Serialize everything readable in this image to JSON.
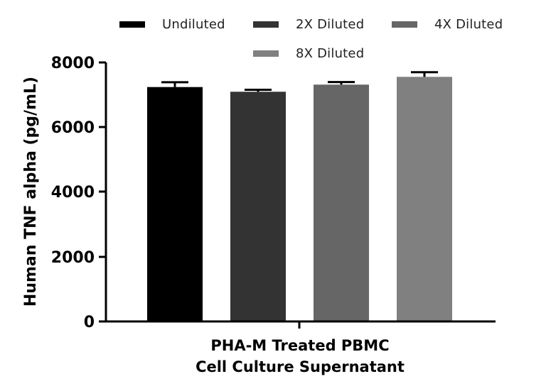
{
  "chart_data": {
    "type": "bar",
    "title": "",
    "xlabel": "PHA-M Treated PBMC\nCell Culture Supernatant",
    "xlabel_lines": [
      "PHA-M Treated PBMC",
      "Cell Culture Supernatant"
    ],
    "ylabel": "Human TNF alpha (pg/mL)",
    "ylim": [
      0,
      8000
    ],
    "yticks": [
      0,
      2000,
      4000,
      6000,
      8000
    ],
    "categories": [
      "PHA-M Treated PBMC Cell Culture Supernatant"
    ],
    "grid": false,
    "legend_position": "top",
    "series": [
      {
        "name": "Undiluted",
        "values": [
          7240
        ],
        "error": [
          150
        ],
        "color": "#000000"
      },
      {
        "name": "2X Diluted",
        "values": [
          7095
        ],
        "error": [
          60
        ],
        "color": "#333333"
      },
      {
        "name": "4X Diluted",
        "values": [
          7315
        ],
        "error": [
          80
        ],
        "color": "#666666"
      },
      {
        "name": "8X Diluted",
        "values": [
          7555
        ],
        "error": [
          145
        ],
        "color": "#808080"
      }
    ]
  },
  "legend": [
    {
      "label": "Undiluted",
      "color": "#000000"
    },
    {
      "label": "2X Diluted",
      "color": "#333333"
    },
    {
      "label": "4X Diluted",
      "color": "#666666"
    },
    {
      "label": "8X Diluted",
      "color": "#808080"
    }
  ],
  "axis": {
    "y_title": "Human TNF alpha (pg/mL)",
    "y_ticks": [
      "0",
      "2000",
      "4000",
      "6000",
      "8000"
    ],
    "x_title_line1": "PHA-M Treated PBMC",
    "x_title_line2": "Cell Culture Supernatant"
  }
}
